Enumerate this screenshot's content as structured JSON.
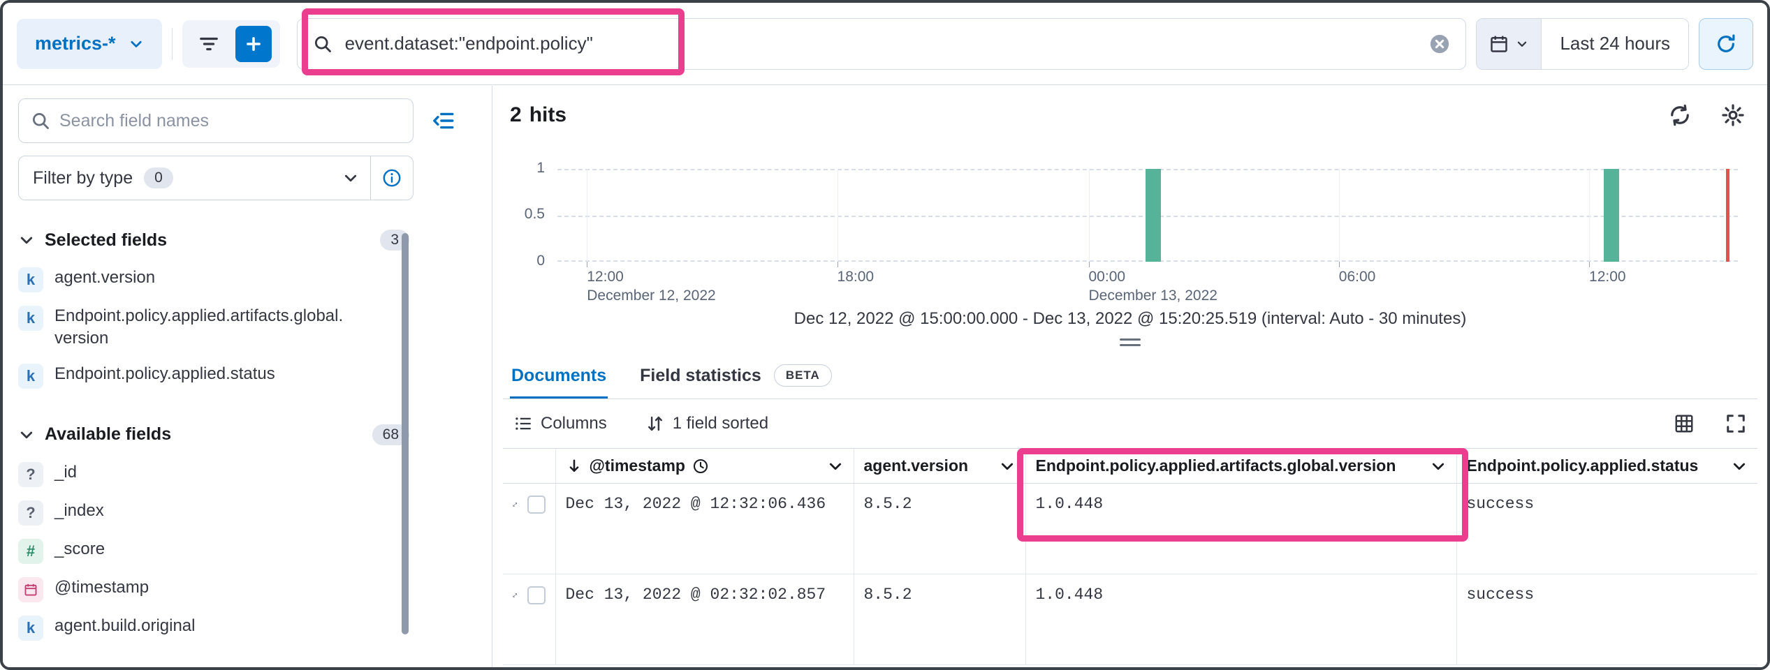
{
  "annotations": {
    "color": "#ec3e8f"
  },
  "top_bar": {
    "data_view_label": "metrics-*",
    "query": "event.dataset:\"endpoint.policy\"",
    "time_label": "Last 24 hours"
  },
  "sidebar": {
    "search_placeholder": "Search field names",
    "filter_label": "Filter by type",
    "filter_count": "0",
    "selected": {
      "label": "Selected fields",
      "count": "3",
      "items": [
        {
          "token": "k",
          "name": "agent.version"
        },
        {
          "token": "k",
          "name": "Endpoint.policy.applied.artifacts.global.version"
        },
        {
          "token": "k",
          "name": "Endpoint.policy.applied.status"
        }
      ]
    },
    "available": {
      "label": "Available fields",
      "count": "68",
      "items": [
        {
          "token": "?",
          "name": "_id"
        },
        {
          "token": "?",
          "name": "_index"
        },
        {
          "token": "#",
          "name": "_score"
        },
        {
          "token": "date",
          "name": "@timestamp"
        },
        {
          "token": "k",
          "name": "agent.build.original"
        }
      ]
    }
  },
  "main": {
    "hits_count": "2",
    "hits_label": "hits",
    "chart_caption": "Dec 12, 2022 @ 15:00:00.000 - Dec 13, 2022 @ 15:20:25.519 (interval: Auto - 30 minutes)",
    "tabs": {
      "documents": "Documents",
      "field_statistics": "Field statistics",
      "beta": "BETA"
    },
    "toolbar": {
      "columns": "Columns",
      "sorted": "1 field sorted"
    },
    "table": {
      "headers": {
        "timestamp": "@timestamp",
        "agent_version": "agent.version",
        "artifacts": "Endpoint.policy.applied.artifacts.global.version",
        "status": "Endpoint.policy.applied.status"
      },
      "rows": [
        {
          "cells": {
            "timestamp": "Dec 13, 2022 @ 12:32:06.436",
            "agent_version": "8.5.2",
            "artifacts": "1.0.448",
            "status": "success"
          }
        },
        {
          "cells": {
            "timestamp": "Dec 13, 2022 @ 02:32:02.857",
            "agent_version": "8.5.2",
            "artifacts": "1.0.448",
            "status": "success"
          }
        }
      ]
    }
  },
  "chart_data": {
    "type": "bar",
    "y_ticks": [
      "1",
      "0.5",
      "0"
    ],
    "y_max": 1,
    "bar_color": "#54b399",
    "x_ticks": [
      {
        "time": "12:00",
        "date": "December 12, 2022",
        "f": 0.025
      },
      {
        "time": "18:00",
        "f": 0.237
      },
      {
        "time": "00:00",
        "date": "December 13, 2022",
        "f": 0.45
      },
      {
        "time": "06:00",
        "f": 0.662
      },
      {
        "time": "12:00",
        "f": 0.874
      }
    ],
    "bars": [
      {
        "bucket": "Dec 13, 2022 ~02:30",
        "value": 1,
        "f": 0.505
      },
      {
        "bucket": "Dec 13, 2022 ~12:30",
        "value": 1,
        "f": 0.893
      }
    ],
    "now_marker": {
      "f": 0.99,
      "color": "#e2544b"
    }
  }
}
